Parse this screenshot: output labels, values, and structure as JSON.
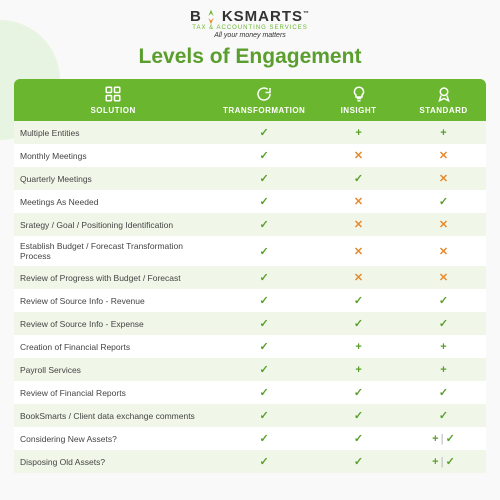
{
  "brand": {
    "name_pre": "B",
    "name_post": "KSMARTS",
    "subtitle": "TAX & ACCOUNTING SERVICES",
    "tagline": "All your money matters",
    "logo_colors": {
      "green": "#6ab72f",
      "orange": "#e68a2e"
    }
  },
  "title": "Levels of Engagement",
  "colors": {
    "header_bg": "#6ab72f",
    "header_text": "#ffffff",
    "row_alt": "#f0f7e9",
    "row_base": "#ffffff",
    "title": "#5a9e2d",
    "check": "#5a9e2d",
    "plus": "#5a9e2d",
    "cross": "#e68a2e"
  },
  "columns": [
    {
      "key": "solution",
      "label": "SOLUTION",
      "icon": "grid-icon"
    },
    {
      "key": "transformation",
      "label": "TRANSFORMATION",
      "icon": "refresh-icon"
    },
    {
      "key": "insight",
      "label": "INSIGHT",
      "icon": "lightbulb-icon"
    },
    {
      "key": "standard",
      "label": "STANDARD",
      "icon": "badge-icon"
    }
  ],
  "marks": {
    "check": "✓",
    "plus": "+",
    "cross": "✕",
    "pluscheck": "+ | ✓"
  },
  "rows": [
    {
      "feature": "Multiple Entities",
      "t": "check",
      "i": "plus",
      "s": "plus"
    },
    {
      "feature": "Monthly Meetings",
      "t": "check",
      "i": "cross",
      "s": "cross"
    },
    {
      "feature": "Quarterly Meetings",
      "t": "check",
      "i": "check",
      "s": "cross"
    },
    {
      "feature": "Meetings As Needed",
      "t": "check",
      "i": "cross",
      "s": "check"
    },
    {
      "feature": "Srategy / Goal / Positioning Identification",
      "t": "check",
      "i": "cross",
      "s": "cross"
    },
    {
      "feature": "Establish Budget / Forecast Transformation Process",
      "t": "check",
      "i": "cross",
      "s": "cross"
    },
    {
      "feature": "Review of Progress with Budget / Forecast",
      "t": "check",
      "i": "cross",
      "s": "cross"
    },
    {
      "feature": "Review of Source Info - Revenue",
      "t": "check",
      "i": "check",
      "s": "check"
    },
    {
      "feature": "Review of Source Info - Expense",
      "t": "check",
      "i": "check",
      "s": "check"
    },
    {
      "feature": "Creation of Financial Reports",
      "t": "check",
      "i": "plus",
      "s": "plus"
    },
    {
      "feature": "Payroll Services",
      "t": "check",
      "i": "plus",
      "s": "plus"
    },
    {
      "feature": "Review of Financial Reports",
      "t": "check",
      "i": "check",
      "s": "check"
    },
    {
      "feature": "BookSmarts / Client data exchange comments",
      "t": "check",
      "i": "check",
      "s": "check"
    },
    {
      "feature": "Considering New Assets?",
      "t": "check",
      "i": "check",
      "s": "pluscheck"
    },
    {
      "feature": "Disposing Old Assets?",
      "t": "check",
      "i": "check",
      "s": "pluscheck"
    }
  ]
}
